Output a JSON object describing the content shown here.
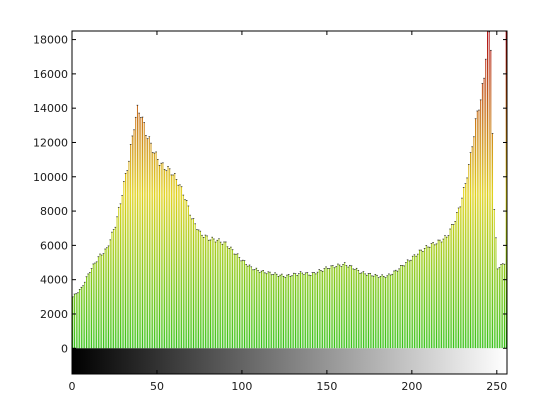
{
  "chart_data": {
    "type": "bar",
    "title": "",
    "xlabel": "",
    "ylabel": "",
    "xlim": [
      0,
      256
    ],
    "ylim": [
      -1500,
      18500
    ],
    "grid": false,
    "x_ticks": [
      0,
      50,
      100,
      150,
      200,
      250
    ],
    "y_ticks": [
      0,
      2000,
      4000,
      6000,
      8000,
      10000,
      12000,
      14000,
      16000,
      18000
    ],
    "x_tick_labels": [
      "0",
      "50",
      "100",
      "150",
      "200",
      "250"
    ],
    "y_tick_labels": [
      "0",
      "2000",
      "4000",
      "6000",
      "8000",
      "10000",
      "12000",
      "14000",
      "16000",
      "18000"
    ],
    "intensity_bar": {
      "from": "#000000",
      "to": "#ffffff",
      "ymin": -1500,
      "ymax": 0
    },
    "bar_colors": {
      "low": "#22bb00",
      "mid": "#ddcc00",
      "high": "#aa0000"
    },
    "key_points": [
      [
        0,
        3000
      ],
      [
        5,
        3500
      ],
      [
        10,
        4500
      ],
      [
        15,
        5300
      ],
      [
        20,
        5800
      ],
      [
        25,
        7200
      ],
      [
        28,
        8500
      ],
      [
        30,
        9600
      ],
      [
        33,
        11000
      ],
      [
        36,
        13000
      ],
      [
        38,
        13900
      ],
      [
        40,
        13700
      ],
      [
        43,
        12600
      ],
      [
        48,
        11400
      ],
      [
        52,
        10700
      ],
      [
        58,
        10300
      ],
      [
        62,
        9700
      ],
      [
        66,
        8800
      ],
      [
        70,
        7600
      ],
      [
        75,
        6700
      ],
      [
        80,
        6400
      ],
      [
        85,
        6300
      ],
      [
        90,
        6100
      ],
      [
        95,
        5600
      ],
      [
        100,
        5100
      ],
      [
        105,
        4700
      ],
      [
        110,
        4500
      ],
      [
        115,
        4400
      ],
      [
        120,
        4300
      ],
      [
        125,
        4200
      ],
      [
        130,
        4300
      ],
      [
        135,
        4400
      ],
      [
        140,
        4300
      ],
      [
        145,
        4500
      ],
      [
        150,
        4700
      ],
      [
        155,
        4800
      ],
      [
        160,
        4900
      ],
      [
        165,
        4700
      ],
      [
        170,
        4400
      ],
      [
        175,
        4300
      ],
      [
        180,
        4200
      ],
      [
        185,
        4200
      ],
      [
        190,
        4500
      ],
      [
        195,
        4900
      ],
      [
        200,
        5300
      ],
      [
        205,
        5700
      ],
      [
        210,
        6000
      ],
      [
        215,
        6200
      ],
      [
        220,
        6500
      ],
      [
        225,
        7500
      ],
      [
        228,
        8400
      ],
      [
        231,
        9600
      ],
      [
        234,
        11200
      ],
      [
        237,
        13200
      ],
      [
        240,
        14600
      ],
      [
        242,
        15700
      ],
      [
        244,
        18700
      ],
      [
        246,
        17500
      ],
      [
        248,
        8000
      ],
      [
        250,
        4700
      ],
      [
        252,
        4800
      ],
      [
        254,
        5000
      ],
      [
        255,
        18500
      ]
    ]
  }
}
